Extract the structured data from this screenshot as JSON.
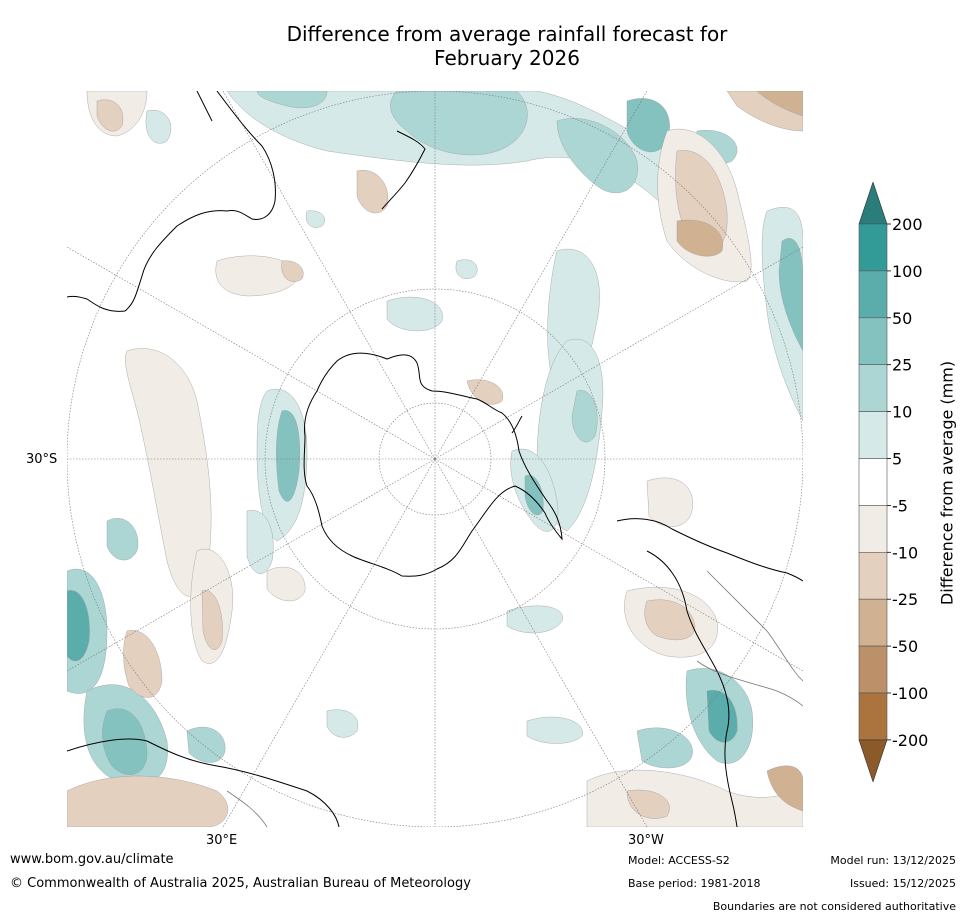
{
  "title_line1": "Difference from average rainfall forecast for",
  "title_line2": "February 2026",
  "map": {
    "latitude_label": "30°S",
    "longitude_labels": [
      "30°E",
      "30°W"
    ]
  },
  "colorbar": {
    "label": "Difference from average (mm)",
    "ticks": [
      "200",
      "100",
      "50",
      "25",
      "10",
      "5",
      "-5",
      "-10",
      "-25",
      "-50",
      "-100",
      "-200"
    ],
    "colors": [
      "#2a7d7b",
      "#329b98",
      "#5aadab",
      "#84c2c0",
      "#acd6d4",
      "#d4e9e8",
      "#ffffff",
      "#f2ece6",
      "#e3d0bf",
      "#d0b293",
      "#bc9069",
      "#ab743e",
      "#8c5a28"
    ]
  },
  "footer": {
    "website": "www.bom.gov.au/climate",
    "copyright": "© Commonwealth of Australia 2025, Australian Bureau of Meteorology",
    "model": "Model: ACCESS-S2",
    "base_period": "Base period: 1981-2018",
    "model_run": "Model run: 13/12/2025",
    "issued": "Issued: 15/12/2025",
    "disclaimer": "Boundaries are not considered authoritative"
  }
}
